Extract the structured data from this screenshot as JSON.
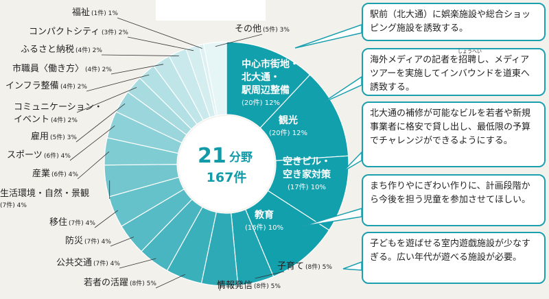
{
  "chart_data": {
    "type": "pie",
    "center_label": {
      "count": "21",
      "unit": "分野",
      "total": "167件"
    },
    "slices": [
      {
        "label": "中心市街地・北大通・駅周辺整備",
        "detail": "(20件) 12%",
        "count": 20,
        "pct": 12,
        "color": "#12a0ad",
        "inside": true
      },
      {
        "label": "観光",
        "detail": "(20件) 12%",
        "count": 20,
        "pct": 12,
        "color": "#12a0ad",
        "inside": true
      },
      {
        "label": "空きビル・空き家対策",
        "detail": "(17件) 10%",
        "count": 17,
        "pct": 10,
        "color": "#12a0ad",
        "inside": true
      },
      {
        "label": "教育",
        "detail": "(16件) 10%",
        "count": 16,
        "pct": 10,
        "color": "#12a0ad",
        "inside": true
      },
      {
        "label": "子育て",
        "detail": "(8件) 5%",
        "count": 8,
        "pct": 5,
        "color": "#1ea5b1",
        "inside": false
      },
      {
        "label": "情報発信",
        "detail": "(8件) 5%",
        "count": 8,
        "pct": 5,
        "color": "#2daab6",
        "inside": false
      },
      {
        "label": "若者の活躍",
        "detail": "(8件) 5%",
        "count": 8,
        "pct": 5,
        "color": "#3ab0bb",
        "inside": false
      },
      {
        "label": "公共交通",
        "detail": "(7件) 4%",
        "count": 7,
        "pct": 4,
        "color": "#49b5c0",
        "inside": false
      },
      {
        "label": "防災",
        "detail": "(7件) 4%",
        "count": 7,
        "pct": 4,
        "color": "#57bbc5",
        "inside": false
      },
      {
        "label": "移住",
        "detail": "(7件) 4%",
        "count": 7,
        "pct": 4,
        "color": "#65c1ca",
        "inside": false
      },
      {
        "label": "生活環境・自然・景観",
        "detail": "(7件) 4%",
        "count": 7,
        "pct": 4,
        "color": "#73c6ce",
        "inside": false
      },
      {
        "label": "産業",
        "detail": "(6件) 4%",
        "count": 6,
        "pct": 4,
        "color": "#80ccd3",
        "inside": false
      },
      {
        "label": "スポーツ",
        "detail": "(6件) 4%",
        "count": 6,
        "pct": 4,
        "color": "#8dd1d8",
        "inside": false
      },
      {
        "label": "雇用",
        "detail": "(5件) 3%",
        "count": 5,
        "pct": 3,
        "color": "#9ad6dc",
        "inside": false
      },
      {
        "label": "コミュニケーション・イベント",
        "detail": "(4件) 2%",
        "count": 4,
        "pct": 2,
        "color": "#a7dbe0",
        "inside": false
      },
      {
        "label": "インフラ整備",
        "detail": "(4件) 2%",
        "count": 4,
        "pct": 2,
        "color": "#b3e0e4",
        "inside": false
      },
      {
        "label": "市職員〈働き方〉",
        "detail": "(4件) 2%",
        "count": 4,
        "pct": 2,
        "color": "#bfe5e8",
        "inside": false
      },
      {
        "label": "ふるさと納税",
        "detail": "(4件) 2%",
        "count": 4,
        "pct": 2,
        "color": "#cae9ec",
        "inside": false
      },
      {
        "label": "コンパクトシティ",
        "detail": "(3件) 2%",
        "count": 3,
        "pct": 2,
        "color": "#d4edef",
        "inside": false
      },
      {
        "label": "福祉",
        "detail": "(1件) 1%",
        "count": 1,
        "pct": 1,
        "color": "#ddf1f3",
        "inside": false
      },
      {
        "label": "その他",
        "detail": "(5件) 3%",
        "count": 5,
        "pct": 3,
        "color": "#e6f5f6",
        "inside": false
      }
    ]
  },
  "comments": [
    {
      "text": "駅前（北大通）に娯楽施設や総合ショッピング施設を誘致する。"
    },
    {
      "text": "海外メディアの記者を招聘し、メディアツアーを実施してインバウンドを道東へ誘致する。",
      "ruby": "しょうへい"
    },
    {
      "text": "北大通の補修が可能なビルを若者や新規事業者に格安で貸し出し、最低限の予算でチャレンジができるようにする。"
    },
    {
      "text": "まち作りやにぎわい作りに、計画段階から今後を担う児童を参加させてほしい。"
    },
    {
      "text": "子どもを遊ばせる室内遊戯施設が少なすぎる。広い年代が遊べる施設が必要。"
    }
  ]
}
